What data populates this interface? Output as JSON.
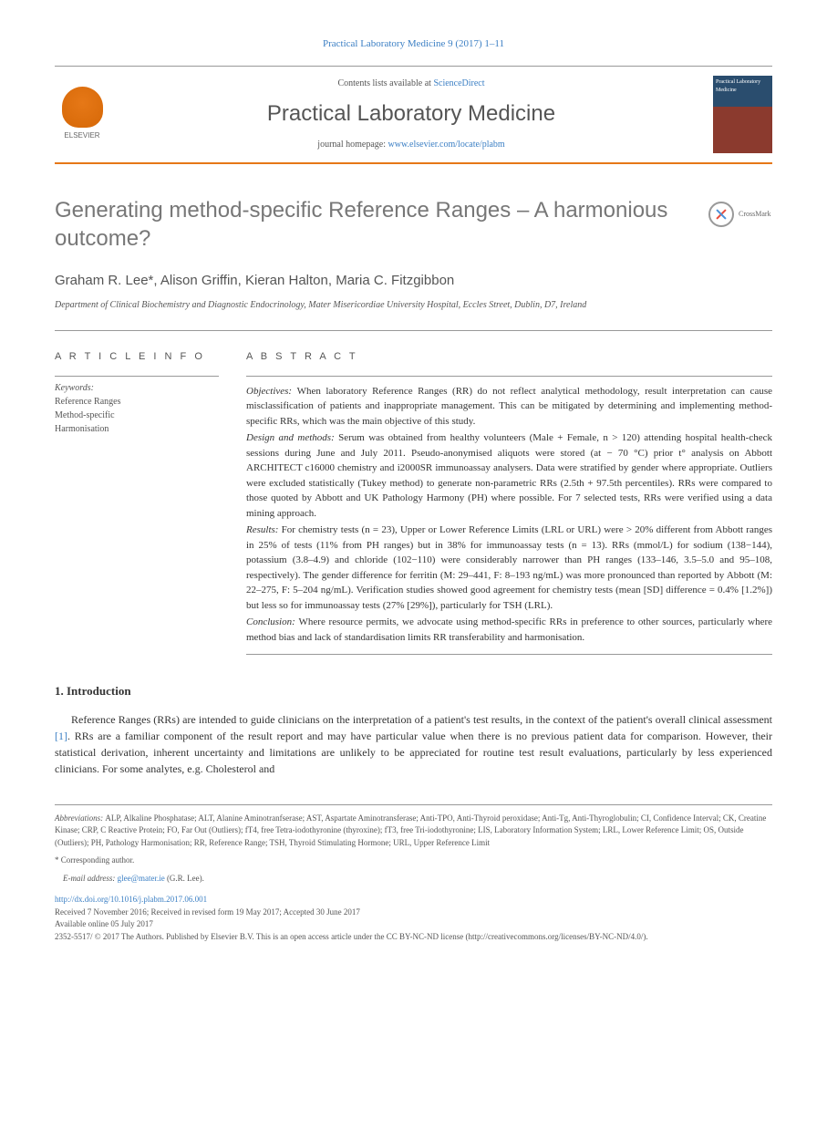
{
  "journal_ref": "Practical Laboratory Medicine 9 (2017) 1–11",
  "header": {
    "contents_prefix": "Contents lists available at ",
    "contents_link": "ScienceDirect",
    "journal_name": "Practical Laboratory Medicine",
    "homepage_prefix": "journal homepage: ",
    "homepage_link": "www.elsevier.com/locate/plabm",
    "publisher_label": "ELSEVIER",
    "cover_text": "Practical Laboratory Medicine"
  },
  "crossmark_label": "CrossMark",
  "title": "Generating method-specific Reference Ranges – A harmonious outcome?",
  "authors": "Graham R. Lee*, Alison Griffin, Kieran Halton, Maria C. Fitzgibbon",
  "affiliation": "Department of Clinical Biochemistry and Diagnostic Endocrinology, Mater Misericordiae University Hospital, Eccles Street, Dublin, D7, Ireland",
  "article_info": {
    "header": "A R T I C L E  I N F O",
    "keywords_label": "Keywords:",
    "keywords": [
      "Reference Ranges",
      "Method-specific",
      "Harmonisation"
    ]
  },
  "abstract": {
    "header": "A B S T R A C T",
    "sections": [
      {
        "label": "Objectives: ",
        "text": "When laboratory Reference Ranges (RR) do not reflect analytical methodology, result interpretation can cause misclassification of patients and inappropriate management. This can be mitigated by determining and implementing method-specific RRs, which was the main objective of this study."
      },
      {
        "label": "Design and methods: ",
        "text": "Serum was obtained from healthy volunteers (Male + Female, n > 120) attending hospital health-check sessions during June and July 2011. Pseudo-anonymised aliquots were stored (at − 70 °C) prior t° analysis on Abbott ARCHITECT c16000 chemistry and i2000SR immunoassay analysers. Data were stratified by gender where appropriate. Outliers were excluded statistically (Tukey method) to generate non-parametric RRs (2.5th + 97.5th percentiles). RRs were compared to those quoted by Abbott and UK Pathology Harmony (PH) where possible. For 7 selected tests, RRs were verified using a data mining approach."
      },
      {
        "label": "Results: ",
        "text": "For chemistry tests (n = 23), Upper or Lower Reference Limits (LRL or URL) were > 20% different from Abbott ranges in 25% of tests (11% from PH ranges) but in 38% for immunoassay tests (n = 13). RRs (mmol/L) for sodium (138−144), potassium (3.8–4.9) and chloride (102−110) were considerably narrower than PH ranges (133–146, 3.5–5.0 and 95–108, respectively). The gender difference for ferritin (M: 29–441, F: 8–193 ng/mL) was more pronounced than reported by Abbott (M: 22–275, F: 5–204 ng/mL). Verification studies showed good agreement for chemistry tests (mean [SD] difference = 0.4% [1.2%]) but less so for immunoassay tests (27% [29%]), particularly for TSH (LRL)."
      },
      {
        "label": "Conclusion: ",
        "text": "Where resource permits, we advocate using method-specific RRs in preference to other sources, particularly where method bias and lack of standardisation limits RR transferability and harmonisation."
      }
    ]
  },
  "intro": {
    "heading": "1. Introduction",
    "para": "Reference Ranges (RRs) are intended to guide clinicians on the interpretation of a patient's test results, in the context of the patient's overall clinical assessment [1]. RRs are a familiar component of the result report and may have particular value when there is no previous patient data for comparison. However, their statistical derivation, inherent uncertainty and limitations are unlikely to be appreciated for routine test result evaluations, particularly by less experienced clinicians. For some analytes, e.g. Cholesterol and",
    "link_text": "[1]"
  },
  "footer": {
    "abbrev_label": "Abbreviations: ",
    "abbrev_text": "ALP, Alkaline Phosphatase; ALT, Alanine Aminotranfserase; AST, Aspartate Aminotransferase; Anti-TPO, Anti-Thyroid peroxidase; Anti-Tg, Anti-Thyroglobulin; CI, Confidence Interval; CK, Creatine Kinase; CRP, C Reactive Protein; FO, Far Out (Outliers); fT4, free Tetra-iodothyronine (thyroxine); fT3, free Tri-iodothyronine; LIS, Laboratory Information System; LRL, Lower Reference Limit; OS, Outside (Outliers); PH, Pathology Harmonisation; RR, Reference Range; TSH, Thyroid Stimulating Hormone; URL, Upper Reference Limit",
    "corresponding": "* Corresponding author.",
    "email_label": "E-mail address: ",
    "email": "glee@mater.ie",
    "email_suffix": " (G.R. Lee).",
    "doi": "http://dx.doi.org/10.1016/j.plabm.2017.06.001",
    "received": "Received 7 November 2016; Received in revised form 19 May 2017; Accepted 30 June 2017",
    "available": "Available online 05 July 2017",
    "issn_license": "2352-5517/ © 2017 The Authors. Published by Elsevier B.V. This is an open access article under the CC BY-NC-ND license (http://creativecommons.org/licenses/BY-NC-ND/4.0/)."
  }
}
